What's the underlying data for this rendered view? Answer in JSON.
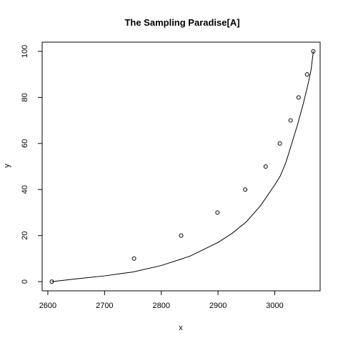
{
  "chart_data": {
    "type": "scatter",
    "title": "The Sampling Paradise[A]",
    "xlabel": "x",
    "ylabel": "y",
    "xlim": [
      2590,
      3080
    ],
    "ylim": [
      -4,
      104
    ],
    "x_ticks": [
      2600,
      2700,
      2800,
      2900,
      3000
    ],
    "x_tick_labels": [
      "2600",
      "2700",
      "2800",
      "2900",
      "3000"
    ],
    "y_ticks": [
      0,
      20,
      40,
      60,
      80,
      100
    ],
    "y_tick_labels": [
      "0",
      "20",
      "40",
      "60",
      "80",
      "100"
    ],
    "grid": false,
    "series": [
      {
        "kind": "points",
        "marker": "open-circle",
        "x": [
          2607,
          2752,
          2835,
          2899,
          2948,
          2984,
          3009,
          3028,
          3042,
          3057,
          3068
        ],
        "y": [
          0,
          10,
          20,
          30,
          40,
          50,
          60,
          70,
          80,
          90,
          100
        ]
      },
      {
        "kind": "line",
        "x": [
          2607,
          2650,
          2700,
          2750,
          2800,
          2850,
          2900,
          2925,
          2950,
          2975,
          3000,
          3010,
          3020,
          3030,
          3040,
          3050,
          3058,
          3064,
          3068
        ],
        "y": [
          0,
          1.2,
          2.5,
          4.2,
          7,
          11,
          17,
          21,
          26,
          33,
          42,
          46,
          52,
          60,
          68,
          77,
          85,
          92,
          100
        ]
      }
    ]
  }
}
